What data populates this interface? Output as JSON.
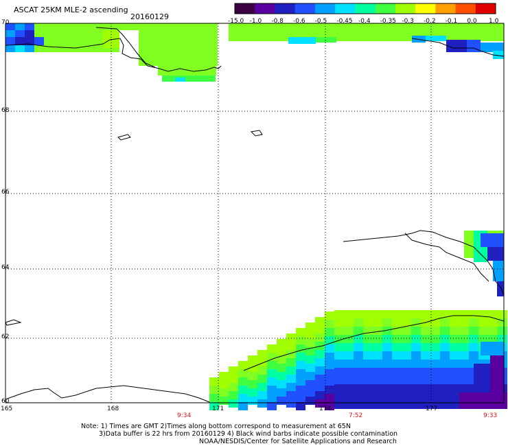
{
  "header": {
    "title": "ASCAT 25KM MLE-2 ascending",
    "date": "20160129"
  },
  "colorbar": {
    "labels": [
      "-15.0",
      "-1.0",
      "-0.8",
      "-0.6",
      "-0.5",
      "-0.45",
      "-0.4",
      "-0.35",
      "-0.3",
      "-0.2",
      "-0.1",
      "0.0",
      "1.0"
    ],
    "colors": [
      "#3a0040",
      "#5a00a0",
      "#2020c0",
      "#2050ff",
      "#00a0ff",
      "#00e0ff",
      "#00ffa0",
      "#40ff40",
      "#a0ff00",
      "#ffff00",
      "#ffa000",
      "#ff5000",
      "#e00000"
    ]
  },
  "axes": {
    "lat_labels": [
      "70",
      "68",
      "66",
      "64",
      "62",
      "60"
    ],
    "lon_labels": [
      "165",
      "168",
      "171",
      "174",
      "177"
    ],
    "time_labels": [
      "9:34",
      "7:52",
      "9:33"
    ]
  },
  "notes": {
    "line1": "Note: 1) Times are GMT 2)Times along bottom correspond to measurement at 65N",
    "line2": "3)Data buffer is 22 hrs from 20160129 4) Black wind barbs indicate possible contamination",
    "line3": "NOAA/NESDIS/Center for Satellite Applications and Research"
  }
}
